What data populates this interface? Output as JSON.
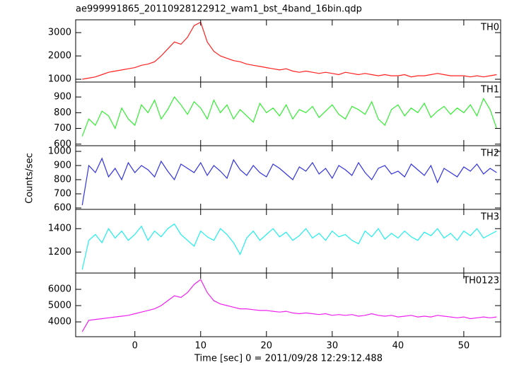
{
  "chart_data": [
    {
      "type": "line",
      "title": "ae999991865_20110928122912_wam1_bst_4band_16bin.qdp",
      "label": "TH0",
      "color": "#ff2020",
      "x": [
        -8,
        -7,
        -6,
        -5,
        -4,
        -3,
        -2,
        -1,
        0,
        1,
        2,
        3,
        4,
        5,
        6,
        7,
        8,
        9,
        10,
        11,
        12,
        13,
        14,
        15,
        16,
        17,
        18,
        19,
        20,
        21,
        22,
        23,
        24,
        25,
        26,
        27,
        28,
        29,
        30,
        31,
        32,
        33,
        34,
        35,
        36,
        37,
        38,
        39,
        40,
        41,
        42,
        43,
        44,
        45,
        46,
        47,
        48,
        49,
        50,
        51,
        52,
        53,
        54,
        55
      ],
      "values": [
        1000,
        1050,
        1100,
        1200,
        1300,
        1350,
        1400,
        1450,
        1500,
        1600,
        1650,
        1750,
        2000,
        2300,
        2600,
        2500,
        2800,
        3300,
        3450,
        2600,
        2200,
        2000,
        1900,
        1800,
        1750,
        1650,
        1600,
        1550,
        1500,
        1450,
        1400,
        1450,
        1350,
        1300,
        1350,
        1300,
        1250,
        1300,
        1250,
        1200,
        1300,
        1250,
        1200,
        1250,
        1200,
        1150,
        1200,
        1150,
        1150,
        1200,
        1100,
        1150,
        1150,
        1200,
        1250,
        1200,
        1150,
        1150,
        1150,
        1100,
        1150,
        1100,
        1150,
        1200
      ],
      "xlim": [
        -9,
        55.6
      ],
      "ylim": [
        880,
        3550
      ],
      "yticks": [
        1000,
        2000,
        3000
      ]
    },
    {
      "type": "line",
      "label": "TH1",
      "color": "#33ee33",
      "x": [
        -8,
        -7,
        -6,
        -5,
        -4,
        -3,
        -2,
        -1,
        0,
        1,
        2,
        3,
        4,
        5,
        6,
        7,
        8,
        9,
        10,
        11,
        12,
        13,
        14,
        15,
        16,
        17,
        18,
        19,
        20,
        21,
        22,
        23,
        24,
        25,
        26,
        27,
        28,
        29,
        30,
        31,
        32,
        33,
        34,
        35,
        36,
        37,
        38,
        39,
        40,
        41,
        42,
        43,
        44,
        45,
        46,
        47,
        48,
        49,
        50,
        51,
        52,
        53,
        54,
        55
      ],
      "values": [
        650,
        760,
        720,
        810,
        780,
        700,
        830,
        760,
        720,
        850,
        800,
        880,
        760,
        820,
        900,
        850,
        790,
        870,
        830,
        760,
        880,
        800,
        850,
        760,
        820,
        780,
        740,
        860,
        800,
        830,
        780,
        850,
        760,
        820,
        800,
        840,
        770,
        810,
        850,
        790,
        760,
        840,
        820,
        790,
        870,
        760,
        720,
        820,
        850,
        780,
        830,
        800,
        860,
        770,
        810,
        840,
        790,
        830,
        800,
        850,
        780,
        890,
        820,
        700
      ],
      "xlim": [
        -9,
        55.6
      ],
      "ylim": [
        590,
        995
      ],
      "yticks": [
        600,
        700,
        800,
        900
      ]
    },
    {
      "type": "line",
      "label": "TH2",
      "color": "#3333dd",
      "ylabel": "Counts/sec",
      "x": [
        -8,
        -7,
        -6,
        -5,
        -4,
        -3,
        -2,
        -1,
        0,
        1,
        2,
        3,
        4,
        5,
        6,
        7,
        8,
        9,
        10,
        11,
        12,
        13,
        14,
        15,
        16,
        17,
        18,
        19,
        20,
        21,
        22,
        23,
        24,
        25,
        26,
        27,
        28,
        29,
        30,
        31,
        32,
        33,
        34,
        35,
        36,
        37,
        38,
        39,
        40,
        41,
        42,
        43,
        44,
        45,
        46,
        47,
        48,
        49,
        50,
        51,
        52,
        53,
        54,
        55
      ],
      "values": [
        620,
        900,
        850,
        950,
        820,
        880,
        800,
        920,
        850,
        900,
        870,
        820,
        930,
        860,
        800,
        910,
        880,
        850,
        920,
        830,
        900,
        860,
        810,
        940,
        870,
        830,
        900,
        850,
        820,
        910,
        880,
        840,
        800,
        890,
        860,
        920,
        840,
        880,
        810,
        900,
        870,
        830,
        920,
        850,
        800,
        880,
        900,
        840,
        860,
        820,
        910,
        870,
        830,
        900,
        780,
        880,
        850,
        820,
        890,
        860,
        910,
        840,
        880,
        850
      ],
      "xlim": [
        -9,
        55.6
      ],
      "ylim": [
        590,
        1040
      ],
      "yticks": [
        600,
        700,
        800,
        900,
        1000
      ]
    },
    {
      "type": "line",
      "label": "TH3",
      "color": "#22eeee",
      "x": [
        -8,
        -7,
        -6,
        -5,
        -4,
        -3,
        -2,
        -1,
        0,
        1,
        2,
        3,
        4,
        5,
        6,
        7,
        8,
        9,
        10,
        11,
        12,
        13,
        14,
        15,
        16,
        17,
        18,
        19,
        20,
        21,
        22,
        23,
        24,
        25,
        26,
        27,
        28,
        29,
        30,
        31,
        32,
        33,
        34,
        35,
        36,
        37,
        38,
        39,
        40,
        41,
        42,
        43,
        44,
        45,
        46,
        47,
        48,
        49,
        50,
        51,
        52,
        53,
        54,
        55
      ],
      "values": [
        1050,
        1300,
        1350,
        1280,
        1400,
        1320,
        1380,
        1300,
        1350,
        1420,
        1300,
        1380,
        1330,
        1400,
        1440,
        1350,
        1300,
        1250,
        1380,
        1330,
        1300,
        1400,
        1350,
        1280,
        1180,
        1320,
        1380,
        1300,
        1350,
        1400,
        1330,
        1370,
        1300,
        1340,
        1400,
        1320,
        1360,
        1300,
        1380,
        1330,
        1350,
        1300,
        1270,
        1380,
        1330,
        1400,
        1310,
        1360,
        1320,
        1380,
        1330,
        1300,
        1370,
        1340,
        1400,
        1320,
        1360,
        1300,
        1380,
        1340,
        1400,
        1320,
        1350,
        1380
      ],
      "xlim": [
        -9,
        55.6
      ],
      "ylim": [
        1020,
        1565
      ],
      "yticks": [
        1200,
        1400
      ]
    },
    {
      "type": "line",
      "label": "TH0123",
      "color": "#ee22ee",
      "xlabel": "Time [sec] 0 = 2011/09/28 12:29:12.488",
      "x": [
        -8,
        -7,
        -6,
        -5,
        -4,
        -3,
        -2,
        -1,
        0,
        1,
        2,
        3,
        4,
        5,
        6,
        7,
        8,
        9,
        10,
        11,
        12,
        13,
        14,
        15,
        16,
        17,
        18,
        19,
        20,
        21,
        22,
        23,
        24,
        25,
        26,
        27,
        28,
        29,
        30,
        31,
        32,
        33,
        34,
        35,
        36,
        37,
        38,
        39,
        40,
        41,
        42,
        43,
        44,
        45,
        46,
        47,
        48,
        49,
        50,
        51,
        52,
        53,
        54,
        55
      ],
      "values": [
        3400,
        4100,
        4150,
        4200,
        4250,
        4300,
        4350,
        4400,
        4500,
        4600,
        4700,
        4800,
        5000,
        5300,
        5600,
        5500,
        5800,
        6300,
        6600,
        5800,
        5300,
        5100,
        5000,
        4900,
        4800,
        4800,
        4750,
        4700,
        4700,
        4650,
        4600,
        4650,
        4550,
        4500,
        4550,
        4500,
        4450,
        4500,
        4400,
        4450,
        4400,
        4450,
        4350,
        4400,
        4500,
        4400,
        4350,
        4400,
        4300,
        4350,
        4400,
        4300,
        4350,
        4300,
        4400,
        4350,
        4300,
        4250,
        4300,
        4200,
        4250,
        4300,
        4250,
        4300
      ],
      "xlim": [
        -9,
        55.6
      ],
      "ylim": [
        3090,
        7000
      ],
      "yticks": [
        4000,
        5000,
        6000
      ],
      "xticks": [
        0,
        10,
        20,
        30,
        40,
        50
      ]
    }
  ]
}
